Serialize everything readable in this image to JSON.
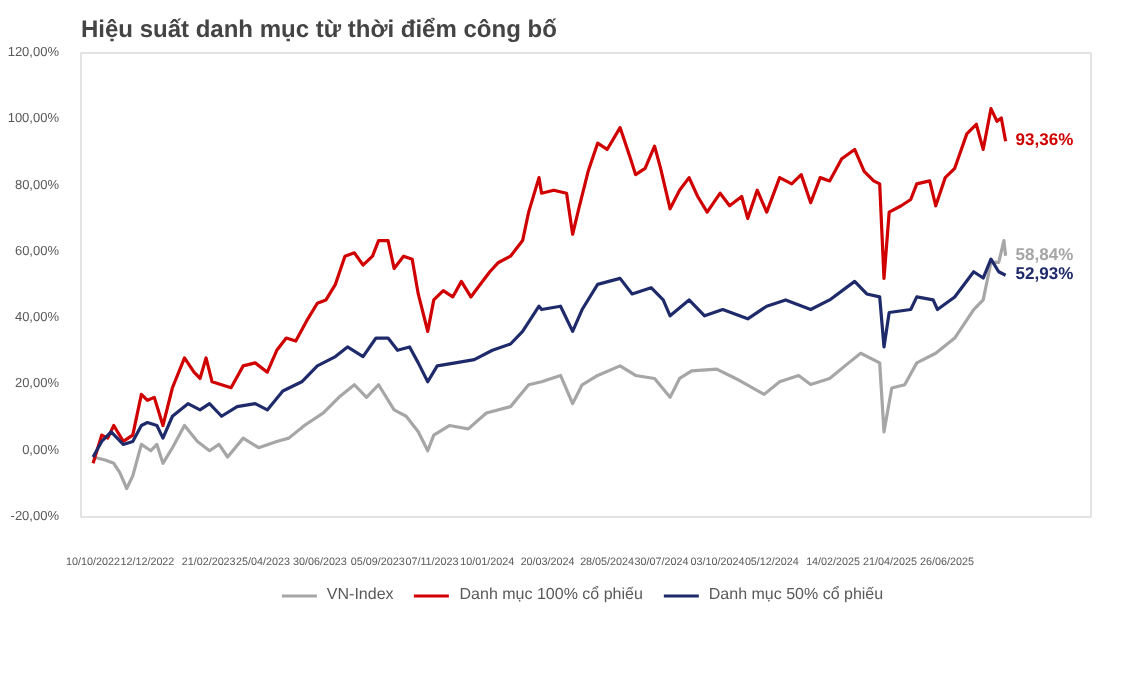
{
  "chart_data": {
    "type": "line",
    "title": "Hiệu suất danh mục từ thời điểm công bố",
    "xlim": [
      "2022-09-26",
      "2025-12-10"
    ],
    "xticks": [
      {
        "value": "2022-10-10",
        "label": "10/10/2022"
      },
      {
        "value": "2022-12-12",
        "label": "12/12/2022"
      },
      {
        "value": "2023-02-21",
        "label": "21/02/2023"
      },
      {
        "value": "2023-04-25",
        "label": "25/04/2023"
      },
      {
        "value": "2023-06-30",
        "label": "30/06/2023"
      },
      {
        "value": "2023-09-05",
        "label": "05/09/2023"
      },
      {
        "value": "2023-11-07",
        "label": "07/11/2023"
      },
      {
        "value": "2024-01-10",
        "label": "10/01/2024"
      },
      {
        "value": "2024-03-20",
        "label": "20/03/2024"
      },
      {
        "value": "2024-05-28",
        "label": "28/05/2024"
      },
      {
        "value": "2024-07-30",
        "label": "30/07/2024"
      },
      {
        "value": "2024-10-03",
        "label": "03/10/2024"
      },
      {
        "value": "2024-12-05",
        "label": "05/12/2024"
      },
      {
        "value": "2025-02-14",
        "label": "14/02/2025"
      },
      {
        "value": "2025-04-21",
        "label": "21/04/2025"
      },
      {
        "value": "2025-06-26",
        "label": "26/06/2025"
      }
    ],
    "ylim": [
      -20,
      120
    ],
    "yticks": [
      {
        "value": -20,
        "label": "-20,00%"
      },
      {
        "value": 0,
        "label": "0,00%"
      },
      {
        "value": 20,
        "label": "20,00%"
      },
      {
        "value": 40,
        "label": "40,00%"
      },
      {
        "value": 60,
        "label": "60,00%"
      },
      {
        "value": 80,
        "label": "80,00%"
      },
      {
        "value": 100,
        "label": "100,00%"
      },
      {
        "value": 120,
        "label": "120,00%"
      }
    ],
    "grid": false,
    "legend": "bottom",
    "marker": "none",
    "line_style": "solid",
    "series": [
      {
        "name": "VN-Index",
        "color": "#a6a6a6",
        "x": [
          "2022-10-10",
          "2022-10-24",
          "2022-11-03",
          "2022-11-10",
          "2022-11-18",
          "2022-11-25",
          "2022-12-05",
          "2022-12-16",
          "2022-12-23",
          "2022-12-30",
          "2023-01-10",
          "2023-01-24",
          "2023-02-08",
          "2023-02-22",
          "2023-03-05",
          "2023-03-15",
          "2023-04-02",
          "2023-04-20",
          "2023-05-11",
          "2023-05-25",
          "2023-06-12",
          "2023-07-04",
          "2023-07-22",
          "2023-08-09",
          "2023-08-23",
          "2023-09-06",
          "2023-09-24",
          "2023-10-08",
          "2023-10-22",
          "2023-11-02",
          "2023-11-09",
          "2023-11-27",
          "2023-12-19",
          "2024-01-09",
          "2024-02-06",
          "2024-02-27",
          "2024-03-13",
          "2024-04-04",
          "2024-04-18",
          "2024-04-29",
          "2024-05-17",
          "2024-06-12",
          "2024-06-30",
          "2024-07-22",
          "2024-08-09",
          "2024-08-20",
          "2024-09-03",
          "2024-10-02",
          "2024-10-24",
          "2024-11-26",
          "2024-12-14",
          "2025-01-05",
          "2025-01-19",
          "2025-02-10",
          "2025-03-04",
          "2025-03-18",
          "2025-04-09",
          "2025-04-14",
          "2025-04-23",
          "2025-05-08",
          "2025-05-22",
          "2025-06-13",
          "2025-07-05",
          "2025-07-27",
          "2025-08-07",
          "2025-08-16",
          "2025-08-25",
          "2025-08-31",
          "2025-09-02"
        ],
        "values": [
          -1.9,
          -2.8,
          -3.8,
          -6.6,
          -11.4,
          -7.6,
          1.9,
          0,
          1.9,
          -3.8,
          0.9,
          7.6,
          2.8,
          0,
          1.9,
          -1.9,
          3.8,
          0.9,
          2.8,
          3.8,
          7.6,
          11.4,
          16.1,
          19.9,
          16.1,
          19.9,
          12.3,
          10.4,
          5.7,
          0,
          4.7,
          7.6,
          6.6,
          11.4,
          13.3,
          19.9,
          20.8,
          22.7,
          14.2,
          19.9,
          22.7,
          25.6,
          22.7,
          21.8,
          16.1,
          21.8,
          24.1,
          24.6,
          21.8,
          17,
          20.8,
          22.7,
          20,
          21.8,
          26.5,
          29.4,
          26.5,
          5.7,
          18.9,
          19.9,
          26.5,
          29.4,
          34,
          42.6,
          45.5,
          56.8,
          56.8,
          63.4,
          58.84
        ]
      },
      {
        "name": "Danh mục 100% cổ phiếu",
        "color": "#d00000",
        "x": [
          "2022-10-10",
          "2022-10-20",
          "2022-10-27",
          "2022-11-03",
          "2022-11-14",
          "2022-11-25",
          "2022-12-05",
          "2022-12-12",
          "2022-12-20",
          "2022-12-30",
          "2023-01-10",
          "2023-01-24",
          "2023-02-04",
          "2023-02-11",
          "2023-02-18",
          "2023-02-25",
          "2023-03-08",
          "2023-03-19",
          "2023-04-02",
          "2023-04-16",
          "2023-04-30",
          "2023-05-11",
          "2023-05-22",
          "2023-06-02",
          "2023-06-16",
          "2023-06-27",
          "2023-07-07",
          "2023-07-18",
          "2023-07-29",
          "2023-08-09",
          "2023-08-19",
          "2023-08-30",
          "2023-09-06",
          "2023-09-17",
          "2023-09-24",
          "2023-10-05",
          "2023-10-15",
          "2023-10-22",
          "2023-11-02",
          "2023-11-09",
          "2023-11-20",
          "2023-12-01",
          "2023-12-11",
          "2023-12-22",
          "2024-01-02",
          "2024-01-13",
          "2024-01-23",
          "2024-02-06",
          "2024-02-20",
          "2024-02-27",
          "2024-03-10",
          "2024-03-13",
          "2024-03-27",
          "2024-04-11",
          "2024-04-18",
          "2024-04-25",
          "2024-05-06",
          "2024-05-17",
          "2024-05-28",
          "2024-06-12",
          "2024-06-23",
          "2024-06-30",
          "2024-07-11",
          "2024-07-22",
          "2024-07-29",
          "2024-08-09",
          "2024-08-20",
          "2024-08-31",
          "2024-09-10",
          "2024-09-21",
          "2024-10-06",
          "2024-10-17",
          "2024-10-31",
          "2024-11-07",
          "2024-11-18",
          "2024-11-29",
          "2024-12-14",
          "2024-12-28",
          "2025-01-08",
          "2025-01-19",
          "2025-01-30",
          "2025-02-10",
          "2025-02-24",
          "2025-03-11",
          "2025-03-22",
          "2025-04-02",
          "2025-04-09",
          "2025-04-14",
          "2025-04-20",
          "2025-05-04",
          "2025-05-15",
          "2025-05-22",
          "2025-06-06",
          "2025-06-13",
          "2025-06-24",
          "2025-07-05",
          "2025-07-19",
          "2025-07-30",
          "2025-08-07",
          "2025-08-16",
          "2025-08-23",
          "2025-08-28",
          "2025-09-02"
        ],
        "values": [
          -3.8,
          4.7,
          3.8,
          7.6,
          2.8,
          4.7,
          17,
          15.2,
          16.1,
          7.6,
          19,
          28,
          23.7,
          21.8,
          28,
          20.8,
          19.9,
          19,
          25.6,
          26.5,
          23.7,
          30.3,
          34,
          33.1,
          39.8,
          44.5,
          45.5,
          50.2,
          58.7,
          59.7,
          56,
          58.7,
          63.4,
          63.4,
          55,
          58.7,
          57.8,
          47.3,
          36,
          45.5,
          48.3,
          46.4,
          51.1,
          46.4,
          50.2,
          54,
          56.8,
          58.7,
          63.4,
          72,
          82.4,
          77.7,
          78.6,
          77.7,
          65.3,
          72.9,
          84.3,
          92.8,
          90.9,
          97.5,
          89,
          83.3,
          85.2,
          91.9,
          85.2,
          73,
          78.6,
          82.4,
          76.7,
          72,
          77.7,
          73.9,
          76.7,
          70.1,
          78.6,
          72,
          82.4,
          80.5,
          83.3,
          74.8,
          82.4,
          81.4,
          88.1,
          90.9,
          84.3,
          81.4,
          80.5,
          52,
          72,
          73.9,
          75.8,
          80.5,
          81.4,
          73.9,
          82.4,
          85.2,
          95.6,
          98.5,
          90.9,
          103.2,
          99.4,
          100.4,
          93.36
        ]
      },
      {
        "name": "Danh mục 50% cổ phiếu",
        "color": "#1f2a6b",
        "x": [
          "2022-10-10",
          "2022-10-20",
          "2022-10-31",
          "2022-11-14",
          "2022-11-25",
          "2022-12-05",
          "2022-12-12",
          "2022-12-23",
          "2022-12-30",
          "2023-01-10",
          "2023-01-28",
          "2023-02-11",
          "2023-02-22",
          "2023-03-08",
          "2023-03-26",
          "2023-04-16",
          "2023-04-30",
          "2023-05-18",
          "2023-06-09",
          "2023-06-27",
          "2023-07-18",
          "2023-08-01",
          "2023-08-19",
          "2023-09-03",
          "2023-09-17",
          "2023-09-28",
          "2023-10-12",
          "2023-10-22",
          "2023-11-02",
          "2023-11-13",
          "2023-12-04",
          "2023-12-26",
          "2024-01-16",
          "2024-02-06",
          "2024-02-20",
          "2024-03-10",
          "2024-03-13",
          "2024-04-04",
          "2024-04-18",
          "2024-04-29",
          "2024-05-17",
          "2024-06-12",
          "2024-06-26",
          "2024-07-18",
          "2024-08-01",
          "2024-08-09",
          "2024-08-31",
          "2024-09-18",
          "2024-10-09",
          "2024-11-07",
          "2024-11-29",
          "2024-12-21",
          "2025-01-19",
          "2025-02-10",
          "2025-03-11",
          "2025-03-25",
          "2025-04-09",
          "2025-04-14",
          "2025-04-20",
          "2025-05-15",
          "2025-05-22",
          "2025-06-10",
          "2025-06-15",
          "2025-07-05",
          "2025-07-27",
          "2025-08-07",
          "2025-08-16",
          "2025-08-25",
          "2025-09-02"
        ],
        "values": [
          -1.9,
          2.8,
          5.7,
          1.9,
          2.8,
          7.6,
          8.5,
          7.6,
          3.8,
          10.4,
          14.2,
          12.3,
          14.2,
          10.4,
          13.3,
          14.2,
          12.3,
          18,
          20.8,
          25.6,
          28.4,
          31.3,
          28.4,
          34,
          34,
          30.3,
          31.3,
          26.5,
          20.8,
          25.6,
          26.5,
          27.5,
          30.3,
          32.2,
          36,
          43.6,
          42.6,
          43.6,
          36,
          42.6,
          50.2,
          52,
          47.3,
          49.2,
          45.5,
          40.7,
          45.5,
          40.7,
          42.6,
          39.8,
          43.6,
          45.5,
          42.6,
          45.5,
          51.1,
          47.3,
          46.4,
          31.3,
          41.7,
          42.6,
          46.4,
          45.5,
          42.6,
          46.4,
          54,
          52.1,
          57.8,
          54,
          52.93
        ]
      }
    ],
    "annotations": [
      {
        "text": "93,36%",
        "x": "2025-09-02",
        "y": 93.36
      },
      {
        "text": "52,93%",
        "x": "2025-09-02",
        "y": 52.93
      },
      {
        "text": "58,84%",
        "x": "2025-09-02",
        "y": 58.84
      }
    ]
  }
}
